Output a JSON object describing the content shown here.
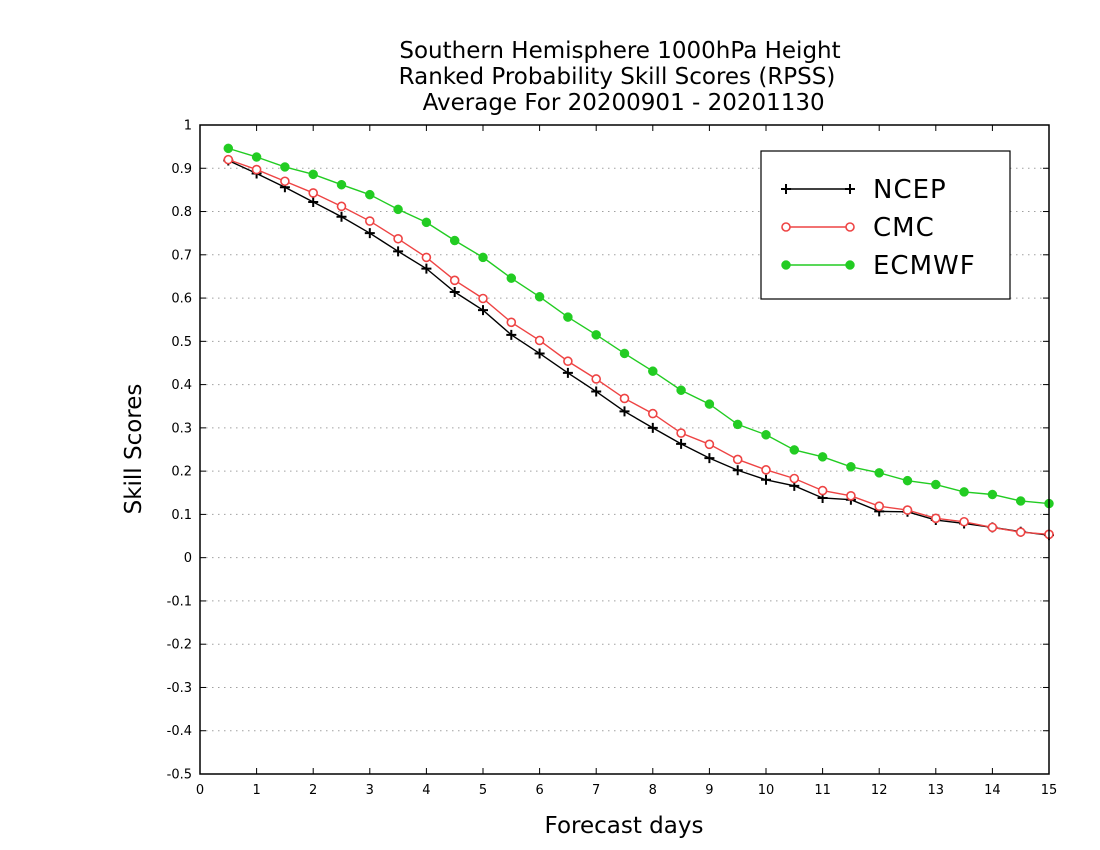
{
  "chart_data": {
    "type": "line",
    "title_lines": [
      "Southern Hemisphere 1000hPa Height",
      "Ranked Probability Skill Scores (RPSS)",
      " Average For 20200901 - 20201130"
    ],
    "xlabel": "Forecast days",
    "ylabel": "Skill Scores",
    "xlim": [
      0,
      15
    ],
    "ylim": [
      -0.5,
      1
    ],
    "x_ticks": [
      "0",
      "1",
      "2",
      "3",
      "4",
      "5",
      "6",
      "7",
      "8",
      "9",
      "10",
      "11",
      "12",
      "13",
      "14",
      "15"
    ],
    "y_ticks": [
      "-0.5",
      "-0.4",
      "-0.3",
      "-0.2",
      "-0.1",
      "0",
      "0.1",
      "0.2",
      "0.3",
      "0.4",
      "0.5",
      "0.6",
      "0.7",
      "0.8",
      "0.9",
      "1"
    ],
    "grid": "horizontal dotted",
    "legend_position": "top-right",
    "x": [
      0.5,
      1,
      1.5,
      2,
      2.5,
      3,
      3.5,
      4,
      4.5,
      5,
      5.5,
      6,
      6.5,
      7,
      7.5,
      8,
      8.5,
      9,
      9.5,
      10,
      10.5,
      11,
      11.5,
      12,
      12.5,
      13,
      13.5,
      14,
      14.5,
      15
    ],
    "series": [
      {
        "name": "NCEP",
        "color": "#000000",
        "marker": "plus",
        "values": [
          0.918,
          0.888,
          0.856,
          0.822,
          0.788,
          0.75,
          0.708,
          0.668,
          0.614,
          0.572,
          0.515,
          0.472,
          0.427,
          0.384,
          0.338,
          0.3,
          0.263,
          0.23,
          0.202,
          0.18,
          0.166,
          0.138,
          0.134,
          0.107,
          0.106,
          0.087,
          0.079,
          0.07,
          0.06,
          0.052
        ]
      },
      {
        "name": "CMC",
        "color": "#ee4444",
        "marker": "open-circle",
        "values": [
          0.92,
          0.897,
          0.87,
          0.843,
          0.812,
          0.778,
          0.737,
          0.694,
          0.641,
          0.599,
          0.544,
          0.502,
          0.454,
          0.413,
          0.368,
          0.333,
          0.288,
          0.262,
          0.227,
          0.203,
          0.183,
          0.155,
          0.143,
          0.119,
          0.11,
          0.091,
          0.083,
          0.07,
          0.059,
          0.054
        ]
      },
      {
        "name": "ECMWF",
        "color": "#22cc22",
        "marker": "filled-circle",
        "values": [
          0.946,
          0.926,
          0.903,
          0.886,
          0.862,
          0.839,
          0.805,
          0.775,
          0.733,
          0.694,
          0.646,
          0.603,
          0.556,
          0.515,
          0.472,
          0.431,
          0.387,
          0.355,
          0.308,
          0.284,
          0.249,
          0.233,
          0.21,
          0.196,
          0.178,
          0.169,
          0.152,
          0.146,
          0.131,
          0.125
        ]
      }
    ]
  }
}
